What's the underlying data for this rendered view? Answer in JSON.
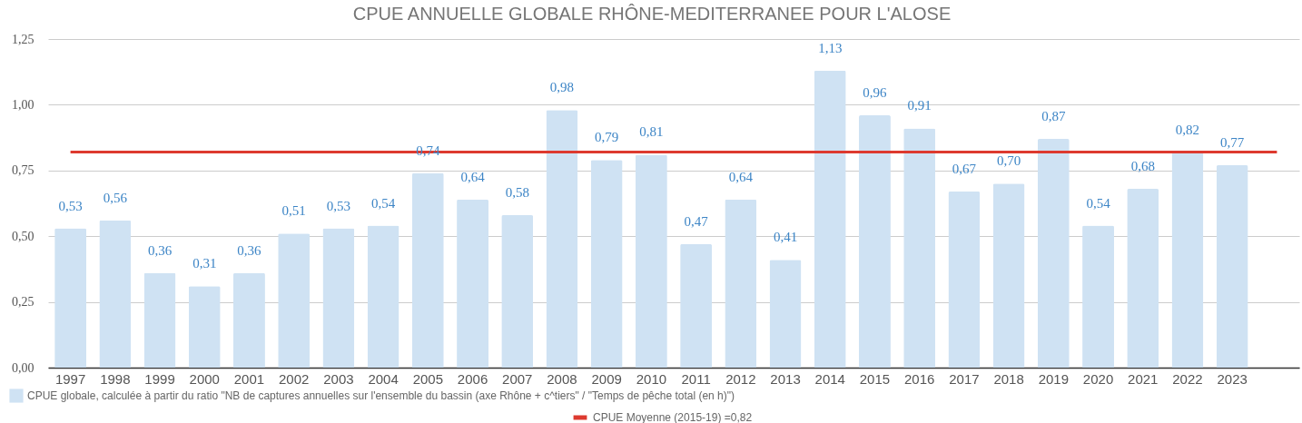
{
  "chart_data": {
    "type": "bar",
    "title": "CPUE ANNUELLE GLOBALE RHÔNE-MEDITERRANEE POUR L'ALOSE",
    "categories": [
      "1997",
      "1998",
      "1999",
      "2000",
      "2001",
      "2002",
      "2003",
      "2004",
      "2005",
      "2006",
      "2007",
      "2008",
      "2009",
      "2010",
      "2011",
      "2012",
      "2013",
      "2014",
      "2015",
      "2016",
      "2017",
      "2018",
      "2019",
      "2020",
      "2021",
      "2022",
      "2023",
      null
    ],
    "series": [
      {
        "name": "CPUE globale, calculée à partir du ratio \"NB de captures annuelles sur l'ensemble du bassin (axe Rhône + c^tiers\" / \"Temps de pêche total (en h)\")",
        "color": "#cfe2f3",
        "values": [
          0.53,
          0.56,
          0.36,
          0.31,
          0.36,
          0.51,
          0.53,
          0.54,
          0.74,
          0.64,
          0.58,
          0.98,
          0.79,
          0.81,
          0.47,
          0.64,
          0.41,
          1.13,
          0.96,
          0.91,
          0.67,
          0.7,
          0.87,
          0.54,
          0.68,
          0.82,
          0.77,
          null
        ],
        "value_labels": [
          "0,53",
          "0,56",
          "0,36",
          "0,31",
          "0,36",
          "0,51",
          "0,53",
          "0,54",
          "0,74",
          "0,64",
          "0,58",
          "0,98",
          "0,79",
          "0,81",
          "0,47",
          "0,64",
          "0,41",
          "1,13",
          "0,96",
          "0,91",
          "0,67",
          "0,70",
          "0,87",
          "0,54",
          "0,68",
          "0,82",
          "0,77",
          null
        ]
      },
      {
        "name": "CPUE Moyenne (2015-19) =0,82",
        "type": "line",
        "color": "#dd3a2f",
        "values": [
          0.82,
          0.82,
          0.82,
          0.82,
          0.82,
          0.82,
          0.82,
          0.82,
          0.82,
          0.82,
          0.82,
          0.82,
          0.82,
          0.82,
          0.82,
          0.82,
          0.82,
          0.82,
          0.82,
          0.82,
          0.82,
          0.82,
          0.82,
          0.82,
          0.82,
          0.82,
          0.82,
          0.82
        ]
      }
    ],
    "ylim": [
      0,
      1.25
    ],
    "yticks": [
      {
        "value": 0,
        "label": "0,00"
      },
      {
        "value": 0.25,
        "label": "0,25"
      },
      {
        "value": 0.5,
        "label": "0,50"
      },
      {
        "value": 0.75,
        "label": "0,75"
      },
      {
        "value": 1,
        "label": "1,00"
      },
      {
        "value": 1.25,
        "label": "1,25"
      }
    ],
    "grid": "y",
    "legend": "bottom"
  }
}
